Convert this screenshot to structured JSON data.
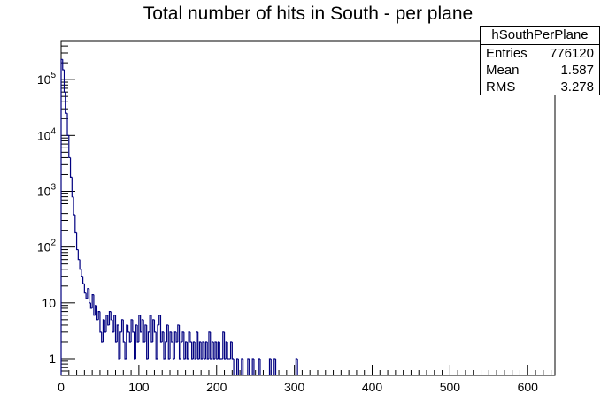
{
  "chart_data": {
    "type": "histogram",
    "title": "Total number of hits in South - per plane",
    "xlabel": "",
    "ylabel": "",
    "xlim": [
      0,
      635
    ],
    "ylim": [
      0.5,
      500000
    ],
    "y_scale": "log",
    "x_ticks": [
      0,
      100,
      200,
      300,
      400,
      500,
      600
    ],
    "y_ticks": [
      {
        "value": 1,
        "base": "1",
        "exp": ""
      },
      {
        "value": 10,
        "base": "10",
        "exp": ""
      },
      {
        "value": 100,
        "base": "10",
        "exp": "2"
      },
      {
        "value": 1000,
        "base": "10",
        "exp": "3"
      },
      {
        "value": 10000,
        "base": "10",
        "exp": "4"
      },
      {
        "value": 100000,
        "base": "10",
        "exp": "5"
      }
    ],
    "bin_width": 2,
    "line_color": "#000080",
    "series": [
      {
        "points": [
          [
            0,
            230000
          ],
          [
            2,
            150000
          ],
          [
            4,
            60000
          ],
          [
            6,
            25000
          ],
          [
            8,
            10000
          ],
          [
            10,
            4000
          ],
          [
            12,
            1800
          ],
          [
            14,
            800
          ],
          [
            16,
            380
          ],
          [
            18,
            180
          ],
          [
            20,
            90
          ],
          [
            22,
            60
          ],
          [
            24,
            40
          ],
          [
            26,
            30
          ],
          [
            28,
            22
          ],
          [
            30,
            15
          ],
          [
            32,
            12
          ],
          [
            34,
            18
          ],
          [
            36,
            10
          ],
          [
            38,
            8
          ],
          [
            40,
            14
          ],
          [
            42,
            6
          ],
          [
            44,
            9
          ],
          [
            46,
            5
          ],
          [
            48,
            7
          ],
          [
            50,
            3
          ],
          [
            52,
            2
          ],
          [
            54,
            5
          ],
          [
            56,
            3
          ],
          [
            58,
            6
          ],
          [
            60,
            4
          ],
          [
            62,
            7
          ],
          [
            64,
            5
          ],
          [
            66,
            3
          ],
          [
            68,
            6
          ],
          [
            70,
            2
          ],
          [
            72,
            4
          ],
          [
            74,
            1
          ],
          [
            76,
            3
          ],
          [
            78,
            5
          ],
          [
            80,
            2
          ],
          [
            82,
            1
          ],
          [
            84,
            4
          ],
          [
            86,
            3
          ],
          [
            88,
            2
          ],
          [
            90,
            5
          ],
          [
            92,
            3
          ],
          [
            94,
            1
          ],
          [
            96,
            4
          ],
          [
            98,
            2
          ],
          [
            100,
            6
          ],
          [
            102,
            3
          ],
          [
            104,
            5
          ],
          [
            106,
            2
          ],
          [
            108,
            4
          ],
          [
            110,
            1
          ],
          [
            112,
            3
          ],
          [
            114,
            6
          ],
          [
            116,
            2
          ],
          [
            118,
            5
          ],
          [
            120,
            3
          ],
          [
            122,
            1
          ],
          [
            124,
            4
          ],
          [
            126,
            6
          ],
          [
            128,
            2
          ],
          [
            130,
            3
          ],
          [
            132,
            1
          ],
          [
            134,
            2
          ],
          [
            136,
            4
          ],
          [
            138,
            1
          ],
          [
            140,
            3
          ],
          [
            142,
            2
          ],
          [
            144,
            1
          ],
          [
            146,
            3
          ],
          [
            148,
            2
          ],
          [
            150,
            4
          ],
          [
            152,
            1
          ],
          [
            154,
            2
          ],
          [
            156,
            3
          ],
          [
            158,
            1
          ],
          [
            160,
            2
          ],
          [
            162,
            1
          ],
          [
            164,
            3
          ],
          [
            166,
            2
          ],
          [
            168,
            1
          ],
          [
            170,
            2
          ],
          [
            172,
            1
          ],
          [
            174,
            3
          ],
          [
            176,
            1
          ],
          [
            178,
            2
          ],
          [
            180,
            1
          ],
          [
            182,
            2
          ],
          [
            184,
            1
          ],
          [
            186,
            2
          ],
          [
            188,
            1
          ],
          [
            190,
            3
          ],
          [
            192,
            1
          ],
          [
            194,
            2
          ],
          [
            196,
            1
          ],
          [
            198,
            2
          ],
          [
            200,
            1
          ],
          [
            202,
            2
          ],
          [
            204,
            1
          ],
          [
            206,
            1
          ],
          [
            208,
            3
          ],
          [
            210,
            1
          ],
          [
            212,
            2
          ],
          [
            214,
            1
          ],
          [
            216,
            1
          ],
          [
            218,
            2
          ],
          [
            220,
            1
          ],
          [
            226,
            1
          ],
          [
            232,
            1
          ],
          [
            240,
            1
          ],
          [
            246,
            1
          ],
          [
            254,
            1
          ],
          [
            268,
            1
          ],
          [
            274,
            1
          ],
          [
            302,
            1
          ]
        ]
      }
    ]
  },
  "stats_box": {
    "name": "hSouthPerPlane",
    "entries_label": "Entries",
    "entries_value": "776120",
    "mean_label": "Mean",
    "mean_value": "1.587",
    "rms_label": "RMS",
    "rms_value": "3.278"
  }
}
